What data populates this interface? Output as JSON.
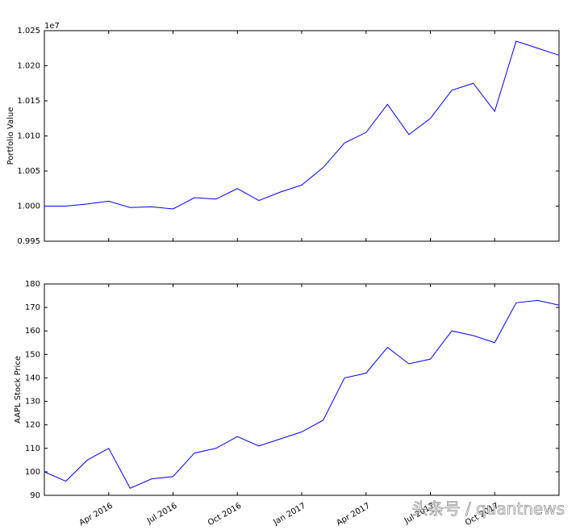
{
  "chart_data": [
    {
      "type": "line",
      "ylabel": "Portfolio Value",
      "offset_label": "1e7",
      "x": [
        "2016-01",
        "2016-02",
        "2016-03",
        "2016-04",
        "2016-05",
        "2016-06",
        "2016-07",
        "2016-08",
        "2016-09",
        "2016-10",
        "2016-11",
        "2016-12",
        "2017-01",
        "2017-02",
        "2017-03",
        "2017-04",
        "2017-05",
        "2017-06",
        "2017-07",
        "2017-08",
        "2017-09",
        "2017-10",
        "2017-11",
        "2017-12",
        "2018-01"
      ],
      "series": [
        {
          "name": "Portfolio Value",
          "color": "#0000ff",
          "values": [
            1.0,
            1.0,
            1.0003,
            1.0007,
            0.9998,
            0.9999,
            0.9996,
            1.0012,
            1.001,
            1.0025,
            1.0008,
            1.002,
            1.003,
            1.0055,
            1.009,
            1.0105,
            1.0145,
            1.0102,
            1.0125,
            1.0165,
            1.0175,
            1.0135,
            1.0235,
            1.0225,
            1.0215
          ]
        }
      ],
      "xlim": [
        "2016-01",
        "2018-01"
      ],
      "ylim": [
        0.995,
        1.025
      ],
      "yticks": [
        0.995,
        {
          "value": 1,
          "label": "1.000"
        },
        1.005,
        {
          "value": 1.01,
          "label": "1.010"
        },
        1.015,
        {
          "value": 1.02,
          "label": "1.020"
        },
        1.025
      ]
    },
    {
      "type": "line",
      "ylabel": "AAPL Stock Price",
      "x": [
        "2016-01",
        "2016-02",
        "2016-03",
        "2016-04",
        "2016-05",
        "2016-06",
        "2016-07",
        "2016-08",
        "2016-09",
        "2016-10",
        "2016-11",
        "2016-12",
        "2017-01",
        "2017-02",
        "2017-03",
        "2017-04",
        "2017-05",
        "2017-06",
        "2017-07",
        "2017-08",
        "2017-09",
        "2017-10",
        "2017-11",
        "2017-12",
        "2018-01"
      ],
      "series": [
        {
          "name": "AAPL Stock Price",
          "color": "#0000ff",
          "values": [
            100,
            96,
            105,
            110,
            93,
            97,
            98,
            108,
            110,
            115,
            111,
            114,
            117,
            122,
            140,
            142,
            153,
            146,
            148,
            160,
            158,
            155,
            172,
            173,
            171
          ]
        }
      ],
      "xlim": [
        "2016-01",
        "2018-01"
      ],
      "xticks": [
        {
          "value": "2016-04",
          "label": "Apr 2016"
        },
        {
          "value": "2016-07",
          "label": "Jul 2016"
        },
        {
          "value": "2016-10",
          "label": "Oct 2016"
        },
        {
          "value": "2017-01",
          "label": "Jan 2017"
        },
        {
          "value": "2017-04",
          "label": "Apr 2017"
        },
        {
          "value": "2017-07",
          "label": "Jul 2017"
        },
        {
          "value": "2017-10",
          "label": "Oct 2017"
        }
      ],
      "ylim": [
        90,
        180
      ],
      "yticks": [
        90,
        100,
        110,
        120,
        130,
        140,
        150,
        160,
        170,
        180
      ]
    }
  ],
  "watermark": "头条号 / quantnews"
}
